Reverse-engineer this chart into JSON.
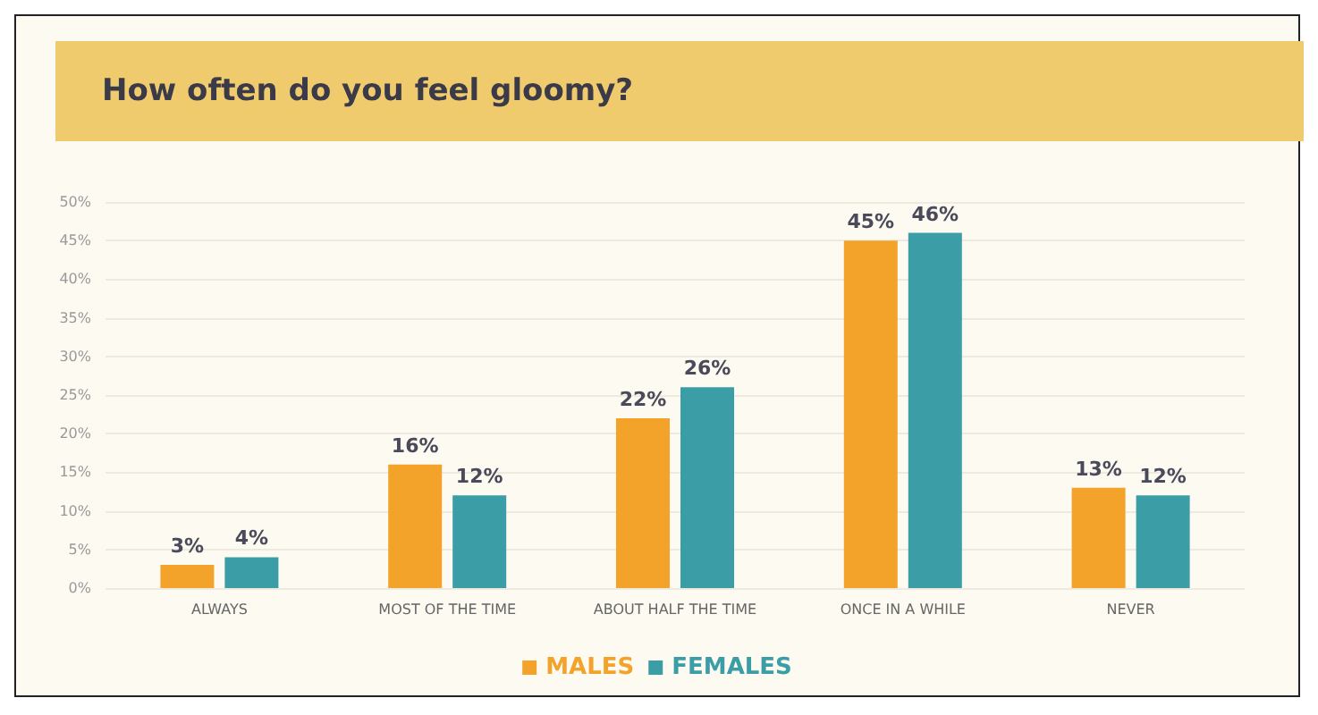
{
  "chart_data": {
    "type": "bar",
    "title": "How often do you feel gloomy?",
    "categories": [
      "ALWAYS",
      "MOST OF THE TIME",
      "ABOUT HALF THE TIME",
      "ONCE IN A WHILE",
      "NEVER"
    ],
    "series": [
      {
        "name": "MALES",
        "color": "#f3a32a",
        "values": [
          3,
          16,
          22,
          45,
          13
        ],
        "value_labels": [
          "3%",
          "16%",
          "22%",
          "45%",
          "13%"
        ]
      },
      {
        "name": "FEMALES",
        "color": "#3b9ea6",
        "values": [
          4,
          12,
          26,
          46,
          12
        ],
        "value_labels": [
          "4%",
          "12%",
          "26%",
          "46%",
          "12%"
        ]
      }
    ],
    "ylim": [
      0,
      50
    ],
    "yticks": [
      {
        "value": 0,
        "label": "0%"
      },
      {
        "value": 5,
        "label": "5%"
      },
      {
        "value": 10,
        "label": "10%"
      },
      {
        "value": 15,
        "label": "15%"
      },
      {
        "value": 20,
        "label": "20%"
      },
      {
        "value": 25,
        "label": "25%"
      },
      {
        "value": 30,
        "label": "30%"
      },
      {
        "value": 35,
        "label": "35%"
      },
      {
        "value": 40,
        "label": "40%"
      },
      {
        "value": 45,
        "label": "45%"
      },
      {
        "value": 50,
        "label": "50%"
      }
    ],
    "grid": "y",
    "legend": "bottom"
  }
}
